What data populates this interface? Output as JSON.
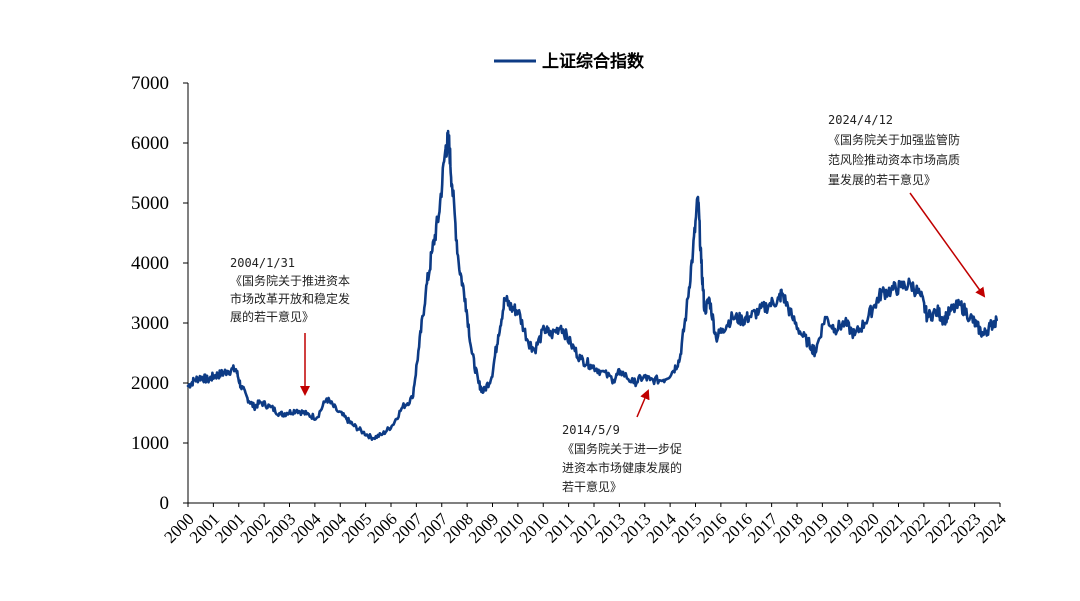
{
  "colors": {
    "series": "#0d3b85",
    "arrow": "#c00000",
    "axis": "#000000"
  },
  "chart_data": {
    "type": "line",
    "title": "",
    "xlabel": "",
    "ylabel": "",
    "ylim": [
      0,
      7000
    ],
    "yticks": [
      "0",
      "1000",
      "2000",
      "3000",
      "4000",
      "5000",
      "6000",
      "7000"
    ],
    "xlim": [
      2000.0,
      2024.6
    ],
    "xticks": [
      "2000",
      "2001",
      "2001",
      "2002",
      "2003",
      "2004",
      "2004",
      "2005",
      "2006",
      "2007",
      "2007",
      "2008",
      "2009",
      "2010",
      "2010",
      "2011",
      "2012",
      "2013",
      "2013",
      "2014",
      "2015",
      "2016",
      "2016",
      "2017",
      "2018",
      "2019",
      "2019",
      "2020",
      "2021",
      "2022",
      "2022",
      "2023",
      "2024"
    ],
    "legend": {
      "position": "top-center",
      "entries": [
        "上证综合指数"
      ]
    },
    "grid": false,
    "series": [
      {
        "name": "上证综合指数",
        "x": [
          2000.0,
          2000.2,
          2000.4,
          2000.6,
          2000.8,
          2001.0,
          2001.2,
          2001.45,
          2001.6,
          2001.8,
          2002.0,
          2002.2,
          2002.5,
          2002.8,
          2003.0,
          2003.3,
          2003.6,
          2003.9,
          2004.2,
          2004.5,
          2004.8,
          2005.0,
          2005.3,
          2005.6,
          2005.9,
          2006.2,
          2006.5,
          2006.8,
          2007.0,
          2007.2,
          2007.4,
          2007.6,
          2007.8,
          2007.9,
          2008.0,
          2008.2,
          2008.4,
          2008.6,
          2008.8,
          2008.95,
          2009.2,
          2009.4,
          2009.6,
          2009.8,
          2010.0,
          2010.3,
          2010.5,
          2010.8,
          2011.0,
          2011.3,
          2011.6,
          2011.9,
          2012.2,
          2012.5,
          2012.9,
          2013.1,
          2013.5,
          2013.8,
          2014.0,
          2014.4,
          2014.7,
          2014.9,
          2015.1,
          2015.3,
          2015.45,
          2015.55,
          2015.65,
          2015.8,
          2016.0,
          2016.2,
          2016.5,
          2016.8,
          2017.0,
          2017.3,
          2017.6,
          2017.9,
          2018.0,
          2018.3,
          2018.6,
          2018.9,
          2019.0,
          2019.3,
          2019.6,
          2019.9,
          2020.2,
          2020.5,
          2020.8,
          2021.0,
          2021.3,
          2021.6,
          2021.9,
          2022.2,
          2022.4,
          2022.7,
          2022.9,
          2023.1,
          2023.4,
          2023.7,
          2023.9,
          2024.1,
          2024.3,
          2024.5
        ],
        "values": [
          1950,
          2050,
          2100,
          2050,
          2120,
          2150,
          2200,
          2230,
          1950,
          1750,
          1600,
          1680,
          1600,
          1480,
          1500,
          1550,
          1480,
          1420,
          1740,
          1550,
          1400,
          1300,
          1180,
          1080,
          1150,
          1300,
          1600,
          1750,
          2600,
          3500,
          4200,
          4800,
          5900,
          6050,
          5300,
          4000,
          3400,
          2500,
          2000,
          1850,
          2100,
          2800,
          3400,
          3250,
          3200,
          2700,
          2550,
          2900,
          2800,
          2950,
          2650,
          2400,
          2300,
          2200,
          2050,
          2200,
          2000,
          2100,
          2050,
          2050,
          2200,
          2400,
          3200,
          4200,
          5100,
          4000,
          3200,
          3400,
          2750,
          2900,
          3100,
          3050,
          3100,
          3200,
          3300,
          3400,
          3500,
          3100,
          2800,
          2600,
          2500,
          3100,
          2900,
          3000,
          2800,
          3000,
          3300,
          3500,
          3550,
          3600,
          3650,
          3450,
          3100,
          3200,
          3050,
          3200,
          3300,
          3100,
          2950,
          2800,
          2950,
          3050
        ]
      }
    ],
    "annotations": [
      {
        "date": "2004/1/31",
        "lines": [
          "《国务院关于推进资本",
          "市场改革开放和稳定发",
          "展的若干意见》"
        ]
      },
      {
        "date": "2014/5/9",
        "lines": [
          "《国务院关于进一步促",
          "进资本市场健康发展的",
          "若干意见》"
        ]
      },
      {
        "date": "2024/4/12",
        "lines": [
          "《国务院关于加强监管防",
          "范风险推动资本市场高质",
          "量发展的若干意见》"
        ]
      }
    ]
  }
}
